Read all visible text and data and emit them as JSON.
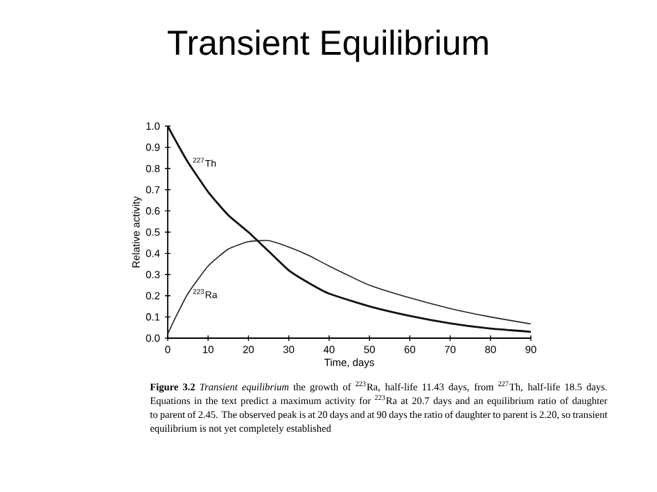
{
  "chart_data": {
    "type": "line",
    "title": "Transient Equilibrium",
    "xlabel": "Time, days",
    "ylabel": "Relative activity",
    "x": [
      0,
      2,
      5,
      10,
      15,
      20,
      25,
      30,
      35,
      40,
      50,
      60,
      70,
      80,
      90
    ],
    "series": [
      {
        "name": "$^{227}$Th",
        "color": "#111111",
        "values": [
          1.0,
          0.93,
          0.83,
          0.69,
          0.58,
          0.5,
          0.41,
          0.32,
          0.26,
          0.21,
          0.15,
          0.105,
          0.07,
          0.045,
          0.03
        ]
      },
      {
        "name": "$^{223}$Ra",
        "color": "#222222",
        "values": [
          0.02,
          0.1,
          0.21,
          0.34,
          0.42,
          0.455,
          0.46,
          0.43,
          0.39,
          0.34,
          0.25,
          0.19,
          0.14,
          0.1,
          0.067
        ]
      }
    ],
    "xlim": [
      0,
      90
    ],
    "ylim": [
      0,
      1.0
    ],
    "xticks": [
      0,
      10,
      20,
      30,
      40,
      50,
      60,
      70,
      80,
      90
    ],
    "yticks": [
      {
        "value": 0,
        "label": "0.0"
      },
      {
        "value": 0.1,
        "label": "0.1"
      },
      {
        "value": 0.2,
        "label": "0.2"
      },
      {
        "value": 0.3,
        "label": "0.3"
      },
      {
        "value": 0.4,
        "label": "0.4"
      },
      {
        "value": 0.5,
        "label": "0.5"
      },
      {
        "value": 0.6,
        "label": "0.6"
      },
      {
        "value": 0.7,
        "label": "0.7"
      },
      {
        "value": 0.8,
        "label": "0.8"
      },
      {
        "value": 0.9,
        "label": "0.9"
      },
      {
        "value": 1.0,
        "label": "1.0"
      }
    ],
    "grid": false,
    "legend": false,
    "marker": "none",
    "line_style": "solid",
    "annotations": [
      "**Figure 3.2** *Transient equilibrium* the growth of $^{223}$Ra, half-life 11.43 days, from $^{227}$Th, half-life 18.5 days. Equations in the text predict a maximum activity for $^{223}$Ra at 20.7 days and an equilibrium ratio of daughter to parent of 2.45. The observed peak is at 20 days and at 90 days the ratio of daughter to parent is 2.20, so transient equilibrium is not yet completely established"
    ]
  }
}
